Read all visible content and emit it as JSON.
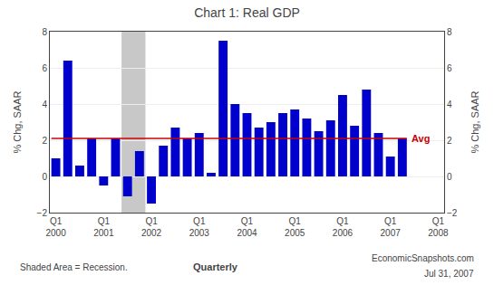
{
  "chart_data": {
    "type": "bar",
    "title": "Chart 1: Real GDP",
    "ylabel": "% Chg, SAAR",
    "y2label": "% Chg, SAAR",
    "categories": [
      "Q1\n2000",
      null,
      null,
      null,
      "Q1\n2001",
      null,
      null,
      null,
      "Q1\n2002",
      null,
      null,
      null,
      "Q1\n2003",
      null,
      null,
      null,
      "Q1\n2004",
      null,
      null,
      null,
      "Q1\n2005",
      null,
      null,
      null,
      "Q1\n2006",
      null,
      null,
      null,
      "Q1\n2007",
      null,
      null,
      null,
      "Q1\n2008"
    ],
    "values": [
      1.0,
      6.4,
      0.6,
      2.1,
      -0.5,
      2.1,
      -1.1,
      1.4,
      -1.5,
      1.7,
      2.7,
      2.1,
      2.4,
      0.2,
      7.5,
      4.0,
      3.5,
      2.7,
      3.0,
      3.5,
      3.7,
      3.2,
      2.5,
      3.1,
      4.5,
      2.8,
      4.8,
      2.4,
      1.1,
      2.1,
      null,
      null,
      null
    ],
    "color": "#0000CC",
    "ylim": [
      -2,
      8
    ],
    "yticks": [
      -2,
      0,
      2,
      4,
      6,
      8
    ],
    "y2lim": [
      -2,
      8
    ],
    "y2ticks": [
      -2,
      0,
      2,
      4,
      6,
      8
    ],
    "grid": true,
    "hlines": [
      {
        "label": "Avg",
        "value": 2.1,
        "color": "#CC0000"
      }
    ],
    "shaded": [
      {
        "start": 6,
        "end": 7,
        "color": "#C8C8C8"
      }
    ],
    "footnotes": {
      "left": "Shaded Area = Recession.",
      "center": "Quarterly",
      "right": [
        "EconomicSnapshots.com",
        "Jul 31, 2007"
      ]
    }
  }
}
